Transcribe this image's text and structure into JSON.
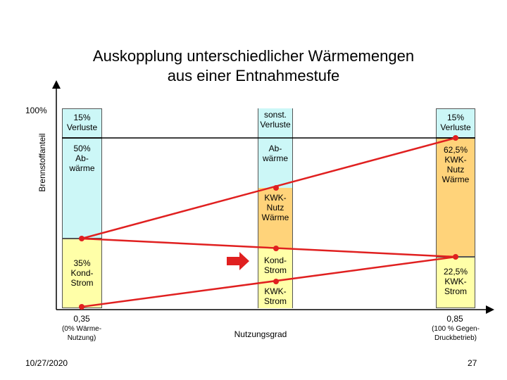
{
  "title_line1": "Auskopplung unterschiedlicher Wärmemengen",
  "title_line2": "aus einer Entnahmestufe",
  "y_axis_label": "Brennstoffanteil",
  "y_top_label": "100%",
  "left_col": {
    "losses": [
      "15%",
      "Verluste"
    ],
    "waste": [
      "50%",
      "Ab-",
      "wärme"
    ],
    "power": [
      "35%",
      "Kond-",
      "Strom"
    ]
  },
  "mid_col": {
    "losses": [
      "sonst.",
      "Verluste"
    ],
    "waste": [
      "Ab-",
      "wärme"
    ],
    "chp_heat": [
      "KWK-",
      "Nutz",
      "Wärme"
    ],
    "cond_power": [
      "Kond-",
      "Strom"
    ],
    "chp_power": [
      "KWK-",
      "Strom"
    ]
  },
  "right_col": {
    "losses": [
      "15%",
      "Verluste"
    ],
    "chp_heat": [
      "62,5%",
      "KWK-",
      "Nutz",
      "Wärme"
    ],
    "chp_power": [
      "22,5%",
      "KWK-",
      "Strom"
    ]
  },
  "x_labels": {
    "left_value": "0,35",
    "left_note": [
      "(0% Wärme-",
      "Nutzung)"
    ],
    "center": "Nutzungsgrad",
    "right_value": "0,85",
    "right_note": [
      "(100 % Gegen-",
      "Druckbetrieb)"
    ]
  },
  "footer": {
    "date": "10/27/2020",
    "page": "27"
  },
  "colors": {
    "red": "#e02020",
    "cyan": "#ccf7f7",
    "yellow": "#ffffa8",
    "orange": "#ffd37a"
  }
}
